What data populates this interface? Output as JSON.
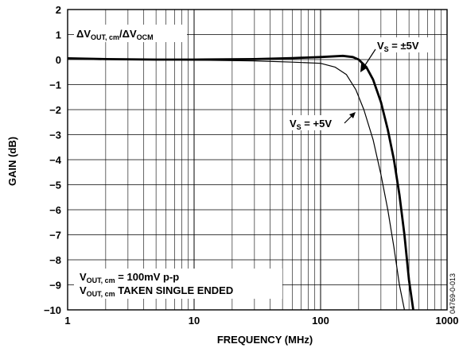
{
  "chart_data": {
    "type": "line",
    "title": "",
    "xlabel": "FREQUENCY (MHz)",
    "ylabel": "GAIN (dB)",
    "xscale": "log",
    "xlim": [
      1,
      1000
    ],
    "ylim": [
      -10,
      2
    ],
    "grid": true,
    "x_ticks": [
      "1",
      "10",
      "100",
      "1000"
    ],
    "y_ticks": [
      "2",
      "1",
      "0",
      "−1",
      "−2",
      "−3",
      "−4",
      "−5",
      "−6",
      "−7",
      "−8",
      "−9",
      "−10"
    ],
    "series": [
      {
        "name": "VS = ±5V",
        "label_main": "V",
        "label_sub": "S",
        "label_rest": " = ±5V",
        "stroke": "#000000",
        "weight": "thick",
        "points": [
          [
            1,
            0.05
          ],
          [
            2,
            0.02
          ],
          [
            5,
            0.0
          ],
          [
            10,
            0.0
          ],
          [
            30,
            0.02
          ],
          [
            60,
            0.06
          ],
          [
            100,
            0.1
          ],
          [
            150,
            0.15
          ],
          [
            180,
            0.1
          ],
          [
            200,
            0.0
          ],
          [
            230,
            -0.3
          ],
          [
            260,
            -0.8
          ],
          [
            300,
            -1.7
          ],
          [
            340,
            -2.8
          ],
          [
            380,
            -4.0
          ],
          [
            420,
            -5.4
          ],
          [
            460,
            -7.0
          ],
          [
            500,
            -8.8
          ],
          [
            540,
            -10.0
          ]
        ]
      },
      {
        "name": "VS = +5V",
        "label_main": "V",
        "label_sub": "S",
        "label_rest": " = +5V",
        "stroke": "#000000",
        "weight": "thin",
        "points": [
          [
            1,
            0.05
          ],
          [
            2,
            0.02
          ],
          [
            5,
            0.0
          ],
          [
            10,
            -0.02
          ],
          [
            30,
            -0.05
          ],
          [
            60,
            -0.1
          ],
          [
            100,
            -0.15
          ],
          [
            130,
            -0.3
          ],
          [
            160,
            -0.6
          ],
          [
            190,
            -1.2
          ],
          [
            220,
            -2.0
          ],
          [
            260,
            -3.2
          ],
          [
            300,
            -4.6
          ],
          [
            340,
            -6.0
          ],
          [
            380,
            -7.5
          ],
          [
            420,
            -9.0
          ],
          [
            460,
            -10.0
          ]
        ]
      }
    ],
    "annotations": {
      "top_left": {
        "p1": "ΔV",
        "s1": "OUT, cm",
        "p2": "/ΔV",
        "s2": "OCM"
      },
      "bottom_left_1": {
        "p1": "V",
        "s1": "OUT, cm",
        "p2": " = 100mV p-p"
      },
      "bottom_left_2": {
        "p1": "V",
        "s1": "OUT, cm",
        "p2": " TAKEN SINGLE ENDED"
      },
      "figure_id": "04769-0-013"
    }
  }
}
